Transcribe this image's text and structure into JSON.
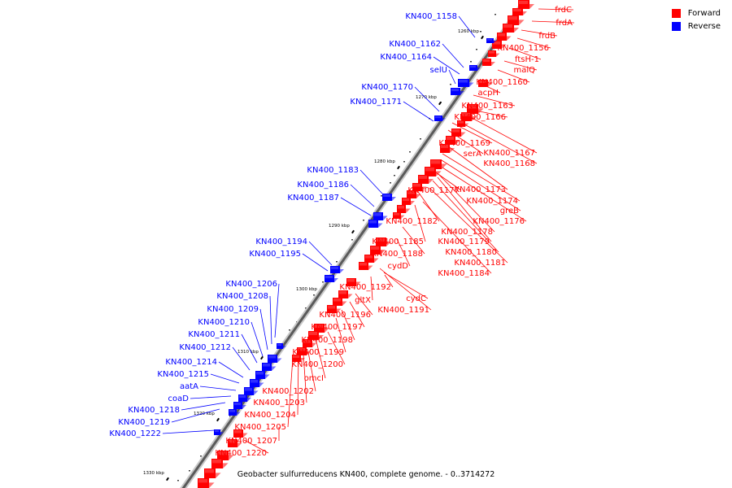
{
  "legend": {
    "forward": {
      "label": "Forward",
      "color": "#ff0000"
    },
    "reverse": {
      "label": "Reverse",
      "color": "#0000ff"
    }
  },
  "caption": "Geobacter sulfurreducens KN400, complete genome. - 0..3714272",
  "axis_ticks": [
    "1260 kbp",
    "1270 kbp",
    "1280 kbp",
    "1290 kbp",
    "1300 kbp",
    "1310 kbp",
    "1320 kbp",
    "1330 kbp"
  ],
  "forward_labels": [
    "frdC",
    "frdA",
    "frdB",
    "KN400_1156",
    "ftsH-1",
    "malQ",
    "KN400_1160",
    "acpH",
    "KN400_1163",
    "KN400_1166",
    "KN400_1169",
    "serA",
    "KN400_1167",
    "KN400_1168",
    "KN400_1173",
    "KN400_1177",
    "KN400_1174",
    "greB",
    "KN400_1176",
    "KN400_1182",
    "KN400_1178",
    "KN400_1179",
    "KN400_1185",
    "KN400_1180",
    "KN400_1188",
    "KN400_1181",
    "cydD",
    "KN400_1184",
    "KN400_1192",
    "gltX",
    "cydC",
    "KN400_1191",
    "KN400_1196",
    "KN400_1197",
    "KN400_1198",
    "KN400_1199",
    "KN400_1200",
    "omcI",
    "KN400_1202",
    "KN400_1203",
    "KN400_1204",
    "KN400_1205",
    "KN400_1207",
    "KN400_1220"
  ],
  "reverse_labels": [
    "KN400_1158",
    "KN400_1162",
    "KN400_1164",
    "selU",
    "KN400_1170",
    "KN400_1171",
    "KN400_1183",
    "KN400_1186",
    "KN400_1187",
    "KN400_1194",
    "KN400_1195",
    "KN400_1206",
    "KN400_1208",
    "KN400_1209",
    "KN400_1210",
    "KN400_1211",
    "KN400_1212",
    "KN400_1214",
    "KN400_1215",
    "aatA",
    "coaD",
    "KN400_1218",
    "KN400_1219",
    "KN400_1222"
  ]
}
